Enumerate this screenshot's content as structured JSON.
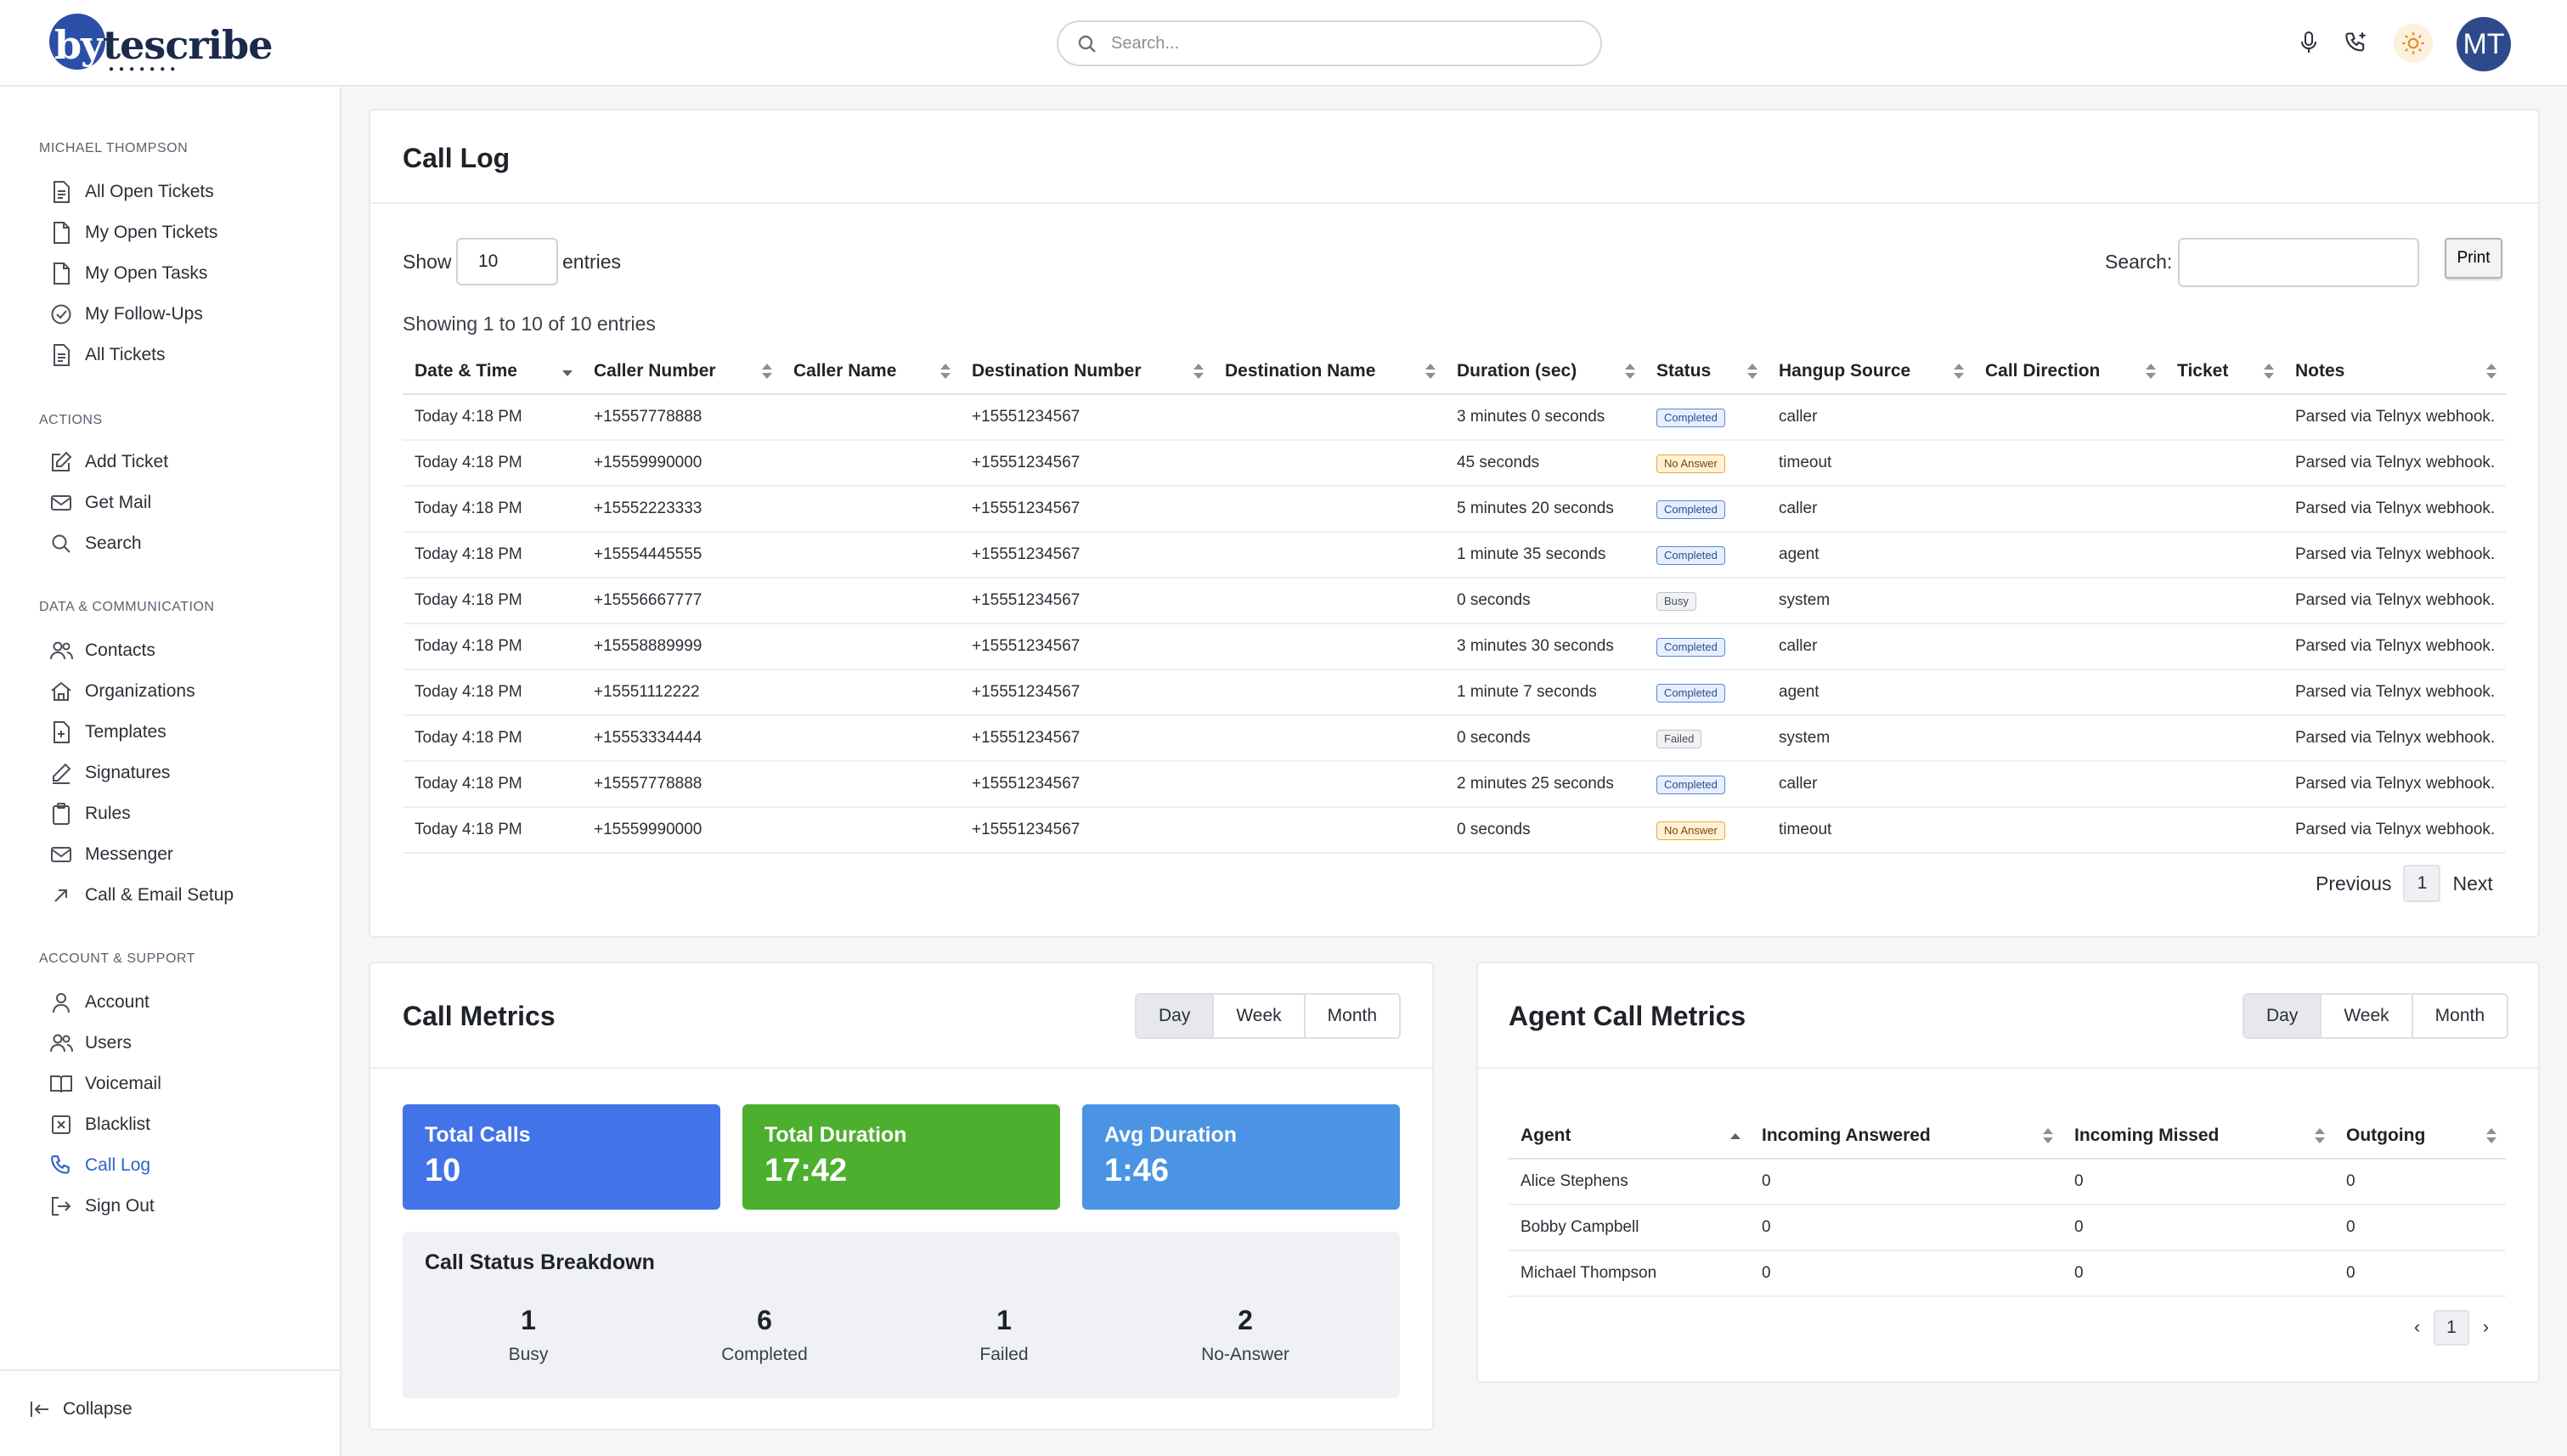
{
  "brand": {
    "logo_text": "bytescribe",
    "logo_first": "by",
    "logo_rest": "tescribe"
  },
  "header": {
    "search_placeholder": "Search...",
    "avatar_initials": "MT",
    "icons": [
      "microphone-icon",
      "phone-icon",
      "sun-icon"
    ]
  },
  "sidebar": {
    "user_section": "MICHAEL THOMPSON",
    "user_items": [
      {
        "label": "All Open Tickets",
        "icon": "ticket-icon"
      },
      {
        "label": "My Open Tickets",
        "icon": "file-icon"
      },
      {
        "label": "My Open Tasks",
        "icon": "file-icon"
      },
      {
        "label": "My Follow-Ups",
        "icon": "check-circle-icon"
      },
      {
        "label": "All Tickets",
        "icon": "ticket-icon"
      }
    ],
    "actions_section": "ACTIONS",
    "action_items": [
      {
        "label": "Add Ticket",
        "icon": "edit-icon"
      },
      {
        "label": "Get Mail",
        "icon": "mail-icon"
      },
      {
        "label": "Search",
        "icon": "search-icon"
      }
    ],
    "data_section": "DATA & COMMUNICATION",
    "data_items": [
      {
        "label": "Contacts",
        "icon": "users-icon"
      },
      {
        "label": "Organizations",
        "icon": "home-icon"
      },
      {
        "label": "Templates",
        "icon": "file-plus-icon"
      },
      {
        "label": "Signatures",
        "icon": "pen-icon"
      },
      {
        "label": "Rules",
        "icon": "clipboard-icon"
      },
      {
        "label": "Messenger",
        "icon": "mail-icon"
      },
      {
        "label": "Call & Email Setup",
        "icon": "arrow-up-right-icon"
      }
    ],
    "account_section": "ACCOUNT & SUPPORT",
    "account_items": [
      {
        "label": "Account",
        "icon": "user-icon"
      },
      {
        "label": "Users",
        "icon": "users-icon"
      },
      {
        "label": "Voicemail",
        "icon": "book-icon"
      },
      {
        "label": "Blacklist",
        "icon": "x-square-icon"
      },
      {
        "label": "Call Log",
        "icon": "phone-icon",
        "active": true
      },
      {
        "label": "Sign Out",
        "icon": "logout-icon"
      }
    ],
    "collapse_label": "Collapse"
  },
  "call_log": {
    "title": "Call Log",
    "show_label": "Show",
    "entries_value": "10",
    "entries_label": "entries",
    "search_label": "Search:",
    "search_value": "",
    "print_label": "Print",
    "showing_text": "Showing 1 to 10 of 10 entries",
    "columns": [
      "Date & Time",
      "Caller Number",
      "Caller Name",
      "Destination Number",
      "Destination Name",
      "Duration (sec)",
      "Status",
      "Hangup Source",
      "Call Direction",
      "Ticket",
      "Notes"
    ],
    "rows": [
      {
        "date": "Today 4:18 PM",
        "caller": "+15557778888",
        "caller_name": "",
        "dest": "+15551234567",
        "dest_name": "",
        "duration": "3 minutes 0 seconds",
        "status": "Completed",
        "hangup": "caller",
        "direction": "",
        "ticket": "",
        "notes": "Parsed via Telnyx webhook."
      },
      {
        "date": "Today 4:18 PM",
        "caller": "+15559990000",
        "caller_name": "",
        "dest": "+15551234567",
        "dest_name": "",
        "duration": "45 seconds",
        "status": "No Answer",
        "hangup": "timeout",
        "direction": "",
        "ticket": "",
        "notes": "Parsed via Telnyx webhook."
      },
      {
        "date": "Today 4:18 PM",
        "caller": "+15552223333",
        "caller_name": "",
        "dest": "+15551234567",
        "dest_name": "",
        "duration": "5 minutes 20 seconds",
        "status": "Completed",
        "hangup": "caller",
        "direction": "",
        "ticket": "",
        "notes": "Parsed via Telnyx webhook."
      },
      {
        "date": "Today 4:18 PM",
        "caller": "+15554445555",
        "caller_name": "",
        "dest": "+15551234567",
        "dest_name": "",
        "duration": "1 minute 35 seconds",
        "status": "Completed",
        "hangup": "agent",
        "direction": "",
        "ticket": "",
        "notes": "Parsed via Telnyx webhook."
      },
      {
        "date": "Today 4:18 PM",
        "caller": "+15556667777",
        "caller_name": "",
        "dest": "+15551234567",
        "dest_name": "",
        "duration": "0 seconds",
        "status": "Busy",
        "hangup": "system",
        "direction": "",
        "ticket": "",
        "notes": "Parsed via Telnyx webhook."
      },
      {
        "date": "Today 4:18 PM",
        "caller": "+15558889999",
        "caller_name": "",
        "dest": "+15551234567",
        "dest_name": "",
        "duration": "3 minutes 30 seconds",
        "status": "Completed",
        "hangup": "caller",
        "direction": "",
        "ticket": "",
        "notes": "Parsed via Telnyx webhook."
      },
      {
        "date": "Today 4:18 PM",
        "caller": "+15551112222",
        "caller_name": "",
        "dest": "+15551234567",
        "dest_name": "",
        "duration": "1 minute 7 seconds",
        "status": "Completed",
        "hangup": "agent",
        "direction": "",
        "ticket": "",
        "notes": "Parsed via Telnyx webhook."
      },
      {
        "date": "Today 4:18 PM",
        "caller": "+15553334444",
        "caller_name": "",
        "dest": "+15551234567",
        "dest_name": "",
        "duration": "0 seconds",
        "status": "Failed",
        "hangup": "system",
        "direction": "",
        "ticket": "",
        "notes": "Parsed via Telnyx webhook."
      },
      {
        "date": "Today 4:18 PM",
        "caller": "+15557778888",
        "caller_name": "",
        "dest": "+15551234567",
        "dest_name": "",
        "duration": "2 minutes 25 seconds",
        "status": "Completed",
        "hangup": "caller",
        "direction": "",
        "ticket": "",
        "notes": "Parsed via Telnyx webhook."
      },
      {
        "date": "Today 4:18 PM",
        "caller": "+15559990000",
        "caller_name": "",
        "dest": "+15551234567",
        "dest_name": "",
        "duration": "0 seconds",
        "status": "No Answer",
        "hangup": "timeout",
        "direction": "",
        "ticket": "",
        "notes": "Parsed via Telnyx webhook."
      }
    ],
    "pager": {
      "previous": "Previous",
      "page": "1",
      "next": "Next"
    }
  },
  "call_metrics": {
    "title": "Call Metrics",
    "periods": [
      "Day",
      "Week",
      "Month"
    ],
    "selected_period": "Day",
    "total_calls_label": "Total Calls",
    "total_calls": "10",
    "total_duration_label": "Total Duration",
    "total_duration": "17:42",
    "avg_duration_label": "Avg Duration",
    "avg_duration": "1:46",
    "breakdown_title": "Call Status Breakdown",
    "breakdown": [
      {
        "count": "1",
        "label": "Busy"
      },
      {
        "count": "6",
        "label": "Completed"
      },
      {
        "count": "1",
        "label": "Failed"
      },
      {
        "count": "2",
        "label": "No-Answer"
      }
    ],
    "colors": {
      "total_calls": "#4373e8",
      "total_duration": "#4caf2e",
      "avg_duration": "#4a94e3"
    }
  },
  "agent_metrics": {
    "title": "Agent Call Metrics",
    "periods": [
      "Day",
      "Week",
      "Month"
    ],
    "selected_period": "Day",
    "columns": [
      "Agent",
      "Incoming Answered",
      "Incoming Missed",
      "Outgoing"
    ],
    "rows": [
      {
        "agent": "Alice Stephens",
        "answered": "0",
        "missed": "0",
        "outgoing": "0"
      },
      {
        "agent": "Bobby Campbell",
        "answered": "0",
        "missed": "0",
        "outgoing": "0"
      },
      {
        "agent": "Michael Thompson",
        "answered": "0",
        "missed": "0",
        "outgoing": "0"
      }
    ],
    "pager": {
      "prev": "‹",
      "page": "1",
      "next": "›"
    }
  }
}
